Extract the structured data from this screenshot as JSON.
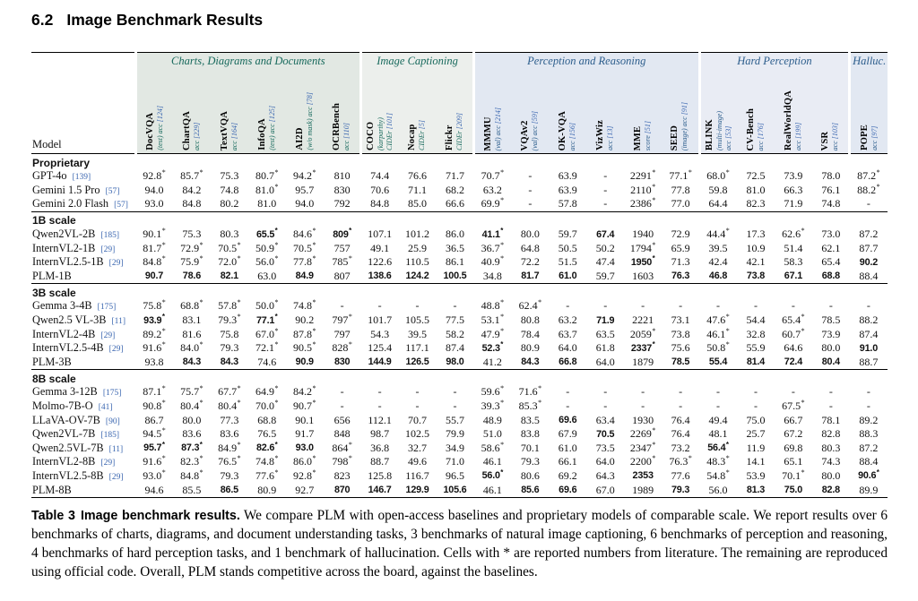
{
  "heading": {
    "number": "6.2",
    "title": "Image Benchmark Results"
  },
  "table": {
    "model_col_label": "Model",
    "groups": [
      {
        "label": "Charts, Diagrams and Documents",
        "cols": 6,
        "theme": "g0"
      },
      {
        "label": "Image Captioning",
        "cols": 3,
        "theme": "g1"
      },
      {
        "label": "Perception and Reasoning",
        "cols": 6,
        "theme": "g2"
      },
      {
        "label": "Hard Perception",
        "cols": 4,
        "theme": "g3"
      },
      {
        "label": "Halluc.",
        "cols": 1,
        "theme": "g4"
      }
    ],
    "columns": [
      {
        "name": "DocVQA",
        "sub": [
          "(test) acc"
        ],
        "cite": "[124]",
        "group": 0
      },
      {
        "name": "ChartQA",
        "sub": [
          "acc"
        ],
        "cite": "[229]",
        "group": 0
      },
      {
        "name": "TextVQA",
        "sub": [
          "acc"
        ],
        "cite": "[164]",
        "group": 0
      },
      {
        "name": "InfoQA",
        "sub": [
          "(test) acc"
        ],
        "cite": "[125]",
        "group": 0
      },
      {
        "name": "AI2D",
        "sub": [
          "(w/o mask) acc"
        ],
        "cite": "[78]",
        "group": 0
      },
      {
        "name": "OCRBench",
        "sub": [
          "acc"
        ],
        "cite": "[110]",
        "group": 0
      },
      {
        "name": "COCO",
        "sub": [
          "(karparthy)",
          "CIDEr"
        ],
        "cite": "[101]",
        "group": 1
      },
      {
        "name": "Nocap",
        "sub": [
          "CIDEr"
        ],
        "cite": "[5]",
        "group": 1
      },
      {
        "name": "Flickr",
        "sub": [
          "CIDEr"
        ],
        "cite": "[209]",
        "group": 1
      },
      {
        "name": "MMMU",
        "sub": [
          "(val) acc"
        ],
        "cite": "[214]",
        "group": 2
      },
      {
        "name": "VQAv2",
        "sub": [
          "(val) acc"
        ],
        "cite": "[59]",
        "group": 2
      },
      {
        "name": "OK-VQA",
        "sub": [
          "acc"
        ],
        "cite": "[156]",
        "group": 2
      },
      {
        "name": "VizWiz",
        "sub": [
          "acc"
        ],
        "cite": "[13]",
        "group": 2
      },
      {
        "name": "MME",
        "sub": [
          "score"
        ],
        "cite": "[51]",
        "group": 2
      },
      {
        "name": "SEED",
        "sub": [
          "(image) acc"
        ],
        "cite": "[91]",
        "group": 2
      },
      {
        "name": "BLINK",
        "sub": [
          "(multi-image)",
          "acc"
        ],
        "cite": "[53]",
        "group": 3
      },
      {
        "name": "CV-Bench",
        "sub": [
          "acc"
        ],
        "cite": "[176]",
        "group": 3
      },
      {
        "name": "RealWorldQA",
        "sub": [
          "acc"
        ],
        "cite": "[199]",
        "group": 3
      },
      {
        "name": "VSR",
        "sub": [
          "acc"
        ],
        "cite": "[103]",
        "group": 3
      },
      {
        "name": "POPE",
        "sub": [
          "acc"
        ],
        "cite": "[97]",
        "group": 4
      }
    ],
    "sections": [
      {
        "label": "Proprietary",
        "rows": [
          {
            "model": "GPT-4o",
            "cite": "[139]",
            "v": [
              "92.8*",
              "85.7*",
              "75.3",
              "80.7*",
              "94.2*",
              "810",
              "74.4",
              "76.6",
              "71.7",
              "70.7*",
              "-",
              "63.9",
              "-",
              "2291*",
              "77.1*",
              "68.0*",
              "72.5",
              "73.9",
              "78.0",
              "87.2*"
            ]
          },
          {
            "model": "Gemini 1.5 Pro",
            "cite": "[57]",
            "v": [
              "94.0",
              "84.2",
              "74.8",
              "81.0*",
              "95.7",
              "830",
              "70.6",
              "71.1",
              "68.2",
              "63.2",
              "-",
              "63.9",
              "-",
              "2110*",
              "77.8",
              "59.8",
              "81.0",
              "66.3",
              "76.1",
              "88.2*"
            ]
          },
          {
            "model": "Gemini 2.0 Flash",
            "cite": "[57]",
            "v": [
              "93.0",
              "84.8",
              "80.2",
              "81.0",
              "94.0",
              "792",
              "84.8",
              "85.0",
              "66.6",
              "69.9*",
              "-",
              "57.8",
              "-",
              "2386*",
              "77.0",
              "64.4",
              "82.3",
              "71.9",
              "74.8",
              "-"
            ]
          }
        ]
      },
      {
        "label": "1B scale",
        "rows": [
          {
            "model": "Qwen2VL-2B",
            "cite": "[185]",
            "v": [
              "90.1*",
              "75.3",
              "80.3",
              "!65.5*",
              "84.6*",
              "!809*",
              "107.1",
              "101.2",
              "86.0",
              "!41.1*",
              "80.0",
              "59.7",
              "!67.4",
              "1940",
              "72.9",
              "44.4*",
              "17.3",
              "62.6*",
              "73.0",
              "87.2"
            ]
          },
          {
            "model": "InternVL2-1B",
            "cite": "[29]",
            "v": [
              "81.7*",
              "72.9*",
              "70.5*",
              "50.9*",
              "70.5*",
              "757",
              "49.1",
              "25.9",
              "36.5",
              "36.7*",
              "64.8",
              "50.5",
              "50.2",
              "1794*",
              "65.9",
              "39.5",
              "10.9",
              "51.4",
              "62.1",
              "87.7"
            ]
          },
          {
            "model": "InternVL2.5-1B",
            "cite": "[29]",
            "v": [
              "84.8*",
              "75.9*",
              "72.0*",
              "56.0*",
              "77.8*",
              "785*",
              "122.6",
              "110.5",
              "86.1",
              "40.9*",
              "72.2",
              "51.5",
              "47.4",
              "!1950*",
              "71.3",
              "42.4",
              "42.1",
              "58.3",
              "65.4",
              "!90.2"
            ]
          },
          {
            "model": "PLM-1B",
            "cite": "",
            "v": [
              "!90.7",
              "!78.6",
              "!82.1",
              "63.0",
              "!84.9",
              "807",
              "!138.6",
              "!124.2",
              "!100.5",
              "34.8",
              "!81.7",
              "!61.0",
              "59.7",
              "1603",
              "!76.3",
              "!46.8",
              "!73.8",
              "!67.1",
              "!68.8",
              "88.4"
            ]
          }
        ]
      },
      {
        "label": "3B scale",
        "rows": [
          {
            "model": "Gemma 3-4B",
            "cite": "[175]",
            "v": [
              "75.8*",
              "68.8*",
              "57.8*",
              "50.0*",
              "74.8*",
              "-",
              "-",
              "-",
              "-",
              "48.8*",
              "62.4*",
              "-",
              "-",
              "-",
              "-",
              "-",
              "-",
              "-",
              "-",
              "-"
            ]
          },
          {
            "model": "Qwen2.5 VL-3B",
            "cite": "[11]",
            "v": [
              "!93.9*",
              "83.1",
              "79.3*",
              "!77.1*",
              "90.2",
              "797*",
              "101.7",
              "105.5",
              "77.5",
              "53.1*",
              "80.8",
              "63.2",
              "!71.9",
              "2221",
              "73.1",
              "47.6*",
              "54.4",
              "65.4*",
              "78.5",
              "88.2"
            ]
          },
          {
            "model": "InternVL2-4B",
            "cite": "[29]",
            "v": [
              "89.2*",
              "81.6",
              "75.8",
              "67.0*",
              "87.8*",
              "797",
              "54.3",
              "39.5",
              "58.2",
              "47.9*",
              "78.4",
              "63.7",
              "63.5",
              "2059*",
              "73.8",
              "46.1*",
              "32.8",
              "60.7*",
              "73.9",
              "87.4"
            ]
          },
          {
            "model": "InternVL2.5-4B",
            "cite": "[29]",
            "v": [
              "91.6*",
              "84.0*",
              "79.3",
              "72.1*",
              "90.5*",
              "828*",
              "125.4",
              "117.1",
              "87.4",
              "!52.3*",
              "80.9",
              "64.0",
              "61.8",
              "!2337*",
              "75.6",
              "50.8*",
              "55.9",
              "64.6",
              "80.0",
              "!91.0"
            ]
          },
          {
            "model": "PLM-3B",
            "cite": "",
            "v": [
              "93.8",
              "!84.3",
              "!84.3",
              "74.6",
              "!90.9",
              "!830",
              "!144.9",
              "!126.5",
              "!98.0",
              "41.2",
              "!84.3",
              "!66.8",
              "64.0",
              "1879",
              "!78.5",
              "!55.4",
              "!81.4",
              "!72.4",
              "!80.4",
              "88.7"
            ]
          }
        ]
      },
      {
        "label": "8B scale",
        "rows": [
          {
            "model": "Gemma 3-12B",
            "cite": "[175]",
            "v": [
              "87.1*",
              "75.7*",
              "67.7*",
              "64.9*",
              "84.2*",
              "-",
              "-",
              "-",
              "-",
              "59.6*",
              "71.6*",
              "-",
              "-",
              "-",
              "-",
              "-",
              "-",
              "-",
              "-",
              "-"
            ]
          },
          {
            "model": "Molmo-7B-O",
            "cite": "[41]",
            "v": [
              "90.8*",
              "80.4*",
              "80.4*",
              "70.0*",
              "90.7*",
              "-",
              "-",
              "-",
              "-",
              "39.3*",
              "85.3*",
              "-",
              "-",
              "-",
              "-",
              "-",
              "-",
              "67.5*",
              "-",
              "-"
            ]
          },
          {
            "model": "LLaVA-OV-7B",
            "cite": "[90]",
            "v": [
              "86.7",
              "80.0",
              "77.3",
              "68.8",
              "90.1",
              "656",
              "112.1",
              "70.7",
              "55.7",
              "48.9",
              "83.5",
              "!69.6",
              "63.4",
              "1930",
              "76.4",
              "49.4",
              "75.0",
              "66.7",
              "78.1",
              "89.2"
            ]
          },
          {
            "model": "Qwen2VL-7B",
            "cite": "[185]",
            "v": [
              "94.5*",
              "83.6",
              "83.6",
              "76.5",
              "91.7",
              "848",
              "98.7",
              "102.5",
              "79.9",
              "51.0",
              "83.8",
              "67.9",
              "!70.5",
              "2269*",
              "76.4",
              "48.1",
              "25.7",
              "67.2",
              "82.8",
              "88.3"
            ]
          },
          {
            "model": "Qwen2.5VL-7B",
            "cite": "[11]",
            "v": [
              "!95.7*",
              "!87.3*",
              "84.9*",
              "!82.6*",
              "!93.0",
              "864*",
              "36.8",
              "32.7",
              "34.9",
              "58.6*",
              "70.1",
              "61.0",
              "73.5",
              "2347*",
              "73.2",
              "!56.4*",
              "11.9",
              "69.8",
              "80.3",
              "87.2"
            ]
          },
          {
            "model": "InternVL2-8B",
            "cite": "[29]",
            "v": [
              "91.6*",
              "82.3*",
              "76.5*",
              "74.8*",
              "86.0*",
              "798*",
              "88.7",
              "49.6",
              "71.0",
              "46.1",
              "79.3",
              "66.1",
              "64.0",
              "2200*",
              "76.3*",
              "48.3*",
              "14.1",
              "65.1",
              "74.3",
              "88.4"
            ]
          },
          {
            "model": "InternVL2.5-8B",
            "cite": "[29]",
            "v": [
              "93.0*",
              "84.8*",
              "79.3",
              "77.6*",
              "92.8*",
              "823",
              "125.8",
              "116.7",
              "96.5",
              "!56.0*",
              "80.6",
              "69.2",
              "64.3",
              "!2353",
              "77.6",
              "54.8*",
              "53.9",
              "70.1*",
              "80.0",
              "!90.6*"
            ]
          },
          {
            "model": "PLM-8B",
            "cite": "",
            "v": [
              "94.6",
              "85.5",
              "!86.5",
              "80.9",
              "92.7",
              "!870",
              "!146.7",
              "!129.9",
              "!105.6",
              "46.1",
              "!85.6",
              "!69.6",
              "67.0",
              "1989",
              "!79.3",
              "56.0",
              "!81.3",
              "!75.0",
              "!82.8",
              "89.9"
            ]
          }
        ]
      }
    ]
  },
  "caption": {
    "tag": "Table 3",
    "title": "Image benchmark results.",
    "text": "We compare PLM with open-access baselines and proprietary models of comparable scale. We report results over 6 benchmarks of charts, diagrams, and document understanding tasks, 3 benchmarks of natural image captioning, 6 benchmarks of perception and reasoning, 4 benchmarks of hard perception tasks, and 1 benchmark of hallucination. Cells with * are reported numbers from literature. The remaining are reproduced using official code. Overall, PLM stands competitive across the board, against the baselines."
  },
  "colors": {
    "group_green_bg": "#e2e8e3",
    "group_green_light_bg": "#ecefec",
    "group_blue_bg": "#e2e8f2",
    "group_blue_light_bg": "#e9ecf4",
    "group_green_text": "#17695c",
    "group_blue_text": "#2c5d8c",
    "citation_blue": "#3a66b0"
  }
}
